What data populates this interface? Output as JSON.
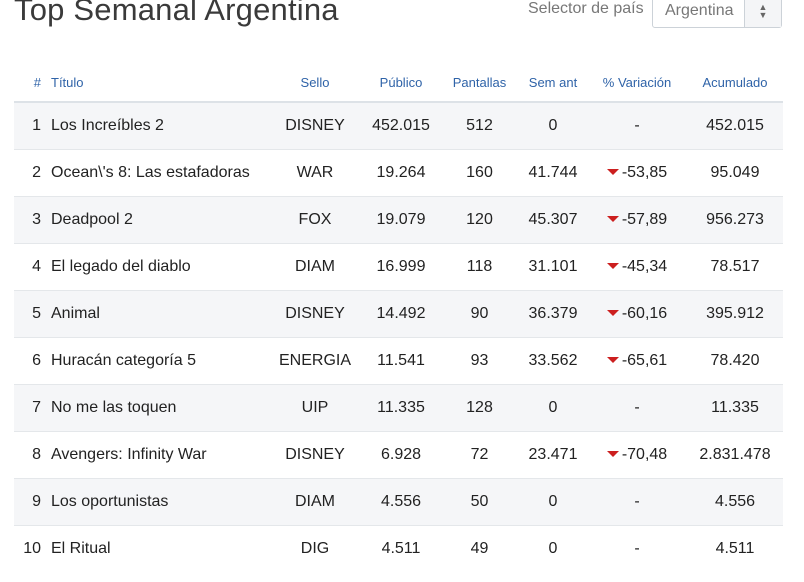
{
  "header": {
    "title": "Top Semanal Argentina",
    "country_label": "Selector de país",
    "country_value": "Argentina"
  },
  "table": {
    "columns": [
      "#",
      "Título",
      "Sello",
      "Público",
      "Pantallas",
      "Sem ant",
      "% Variación",
      "Acumulado"
    ],
    "rows": [
      {
        "rank": "1",
        "title": "Los Increíbles 2",
        "sello": "DISNEY",
        "publico": "452.015",
        "pantallas": "512",
        "sem_ant": "0",
        "variacion": "-",
        "down": false,
        "acumulado": "452.015"
      },
      {
        "rank": "2",
        "title": "Ocean\\'s 8: Las estafadoras",
        "sello": "WAR",
        "publico": "19.264",
        "pantallas": "160",
        "sem_ant": "41.744",
        "variacion": "-53,85",
        "down": true,
        "acumulado": "95.049"
      },
      {
        "rank": "3",
        "title": "Deadpool 2",
        "sello": "FOX",
        "publico": "19.079",
        "pantallas": "120",
        "sem_ant": "45.307",
        "variacion": "-57,89",
        "down": true,
        "acumulado": "956.273"
      },
      {
        "rank": "4",
        "title": "El legado del diablo",
        "sello": "DIAM",
        "publico": "16.999",
        "pantallas": "118",
        "sem_ant": "31.101",
        "variacion": "-45,34",
        "down": true,
        "acumulado": "78.517"
      },
      {
        "rank": "5",
        "title": "Animal",
        "sello": "DISNEY",
        "publico": "14.492",
        "pantallas": "90",
        "sem_ant": "36.379",
        "variacion": "-60,16",
        "down": true,
        "acumulado": "395.912"
      },
      {
        "rank": "6",
        "title": "Huracán categoría 5",
        "sello": "ENERGIA",
        "publico": "11.541",
        "pantallas": "93",
        "sem_ant": "33.562",
        "variacion": "-65,61",
        "down": true,
        "acumulado": "78.420"
      },
      {
        "rank": "7",
        "title": "No me las toquen",
        "sello": "UIP",
        "publico": "11.335",
        "pantallas": "128",
        "sem_ant": "0",
        "variacion": "-",
        "down": false,
        "acumulado": "11.335"
      },
      {
        "rank": "8",
        "title": "Avengers: Infinity War",
        "sello": "DISNEY",
        "publico": "6.928",
        "pantallas": "72",
        "sem_ant": "23.471",
        "variacion": "-70,48",
        "down": true,
        "acumulado": "2.831.478"
      },
      {
        "rank": "9",
        "title": "Los oportunistas",
        "sello": "DIAM",
        "publico": "4.556",
        "pantallas": "50",
        "sem_ant": "0",
        "variacion": "-",
        "down": false,
        "acumulado": "4.556"
      },
      {
        "rank": "10",
        "title": "El Ritual",
        "sello": "DIG",
        "publico": "4.511",
        "pantallas": "49",
        "sem_ant": "0",
        "variacion": "-",
        "down": false,
        "acumulado": "4.511"
      }
    ]
  },
  "icons": {
    "caret": "up-down-caret-icon",
    "variation_down": "down-triangle-icon"
  },
  "colors": {
    "header_text": "#2f63a8",
    "down_arrow": "#cc1f1f",
    "striped_row": "#f5f6f8"
  }
}
